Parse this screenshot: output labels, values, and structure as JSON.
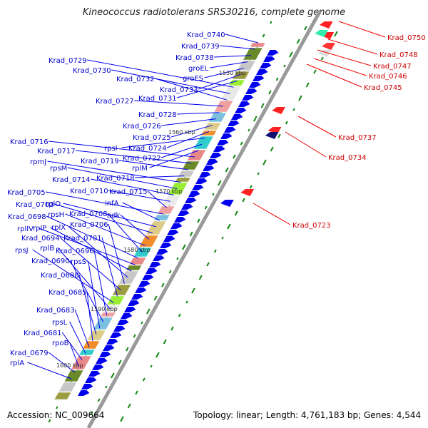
{
  "title": "Kineococcus radiotolerans SRS30216, complete genome",
  "footer": {
    "accession": "Accession: NC_009664",
    "topology": "Topology: linear; Length: 4,761,183 bp; Genes: 4,544"
  },
  "scale_labels": [
    "1550 kbp",
    "1560 kbp",
    "1570 kbp",
    "1580 kbp",
    "1590 kbp",
    "1600 kbp"
  ],
  "left_genes": [
    "Krad_0740",
    "Krad_0739",
    "Krad_0738",
    "groEL",
    "groES",
    "Krad_0733",
    "Krad_0731",
    "Krad_0729",
    "Krad_0730",
    "Krad_0732",
    "Krad_0727",
    "Krad_0728",
    "Krad_0726",
    "Krad_0725",
    "Krad_0724",
    "rpsI",
    "Krad_0722",
    "rplM",
    "Krad_0716",
    "Krad_0717",
    "Krad_0719",
    "Krad_0718",
    "rpmJ",
    "rpsM",
    "Krad_0714",
    "Krad_0710",
    "Krad_0715",
    "Krad_0705",
    "infA",
    "rplO",
    "Krad_0703",
    "adk",
    "rpsH",
    "Krad_0708",
    "Krad_0698",
    "rplIV",
    "rplP",
    "rplX",
    "Krad_0706",
    "Krad_0694",
    "Krad_0701",
    "rpsJ",
    "rplB",
    "Krad_0696",
    "Krad_0690",
    "rpsS",
    "Krad_0688",
    "Krad_0685",
    "Krad_0683",
    "rpsL",
    "Krad_0681",
    "rpoB",
    "Krad_0679",
    "rplA"
  ],
  "right_genes": [
    "Krad_0750",
    "Krad_0748",
    "Krad_0747",
    "Krad_0746",
    "Krad_0745",
    "Krad_0737",
    "Krad_0734",
    "Krad_0723"
  ],
  "colors": {
    "left_label": "#0000cc",
    "right_label": "#cc0000",
    "forward_gene": "#0000ee",
    "reverse_gene": "#ee0000",
    "axis": "#999999",
    "gc_dash": "#118811"
  }
}
